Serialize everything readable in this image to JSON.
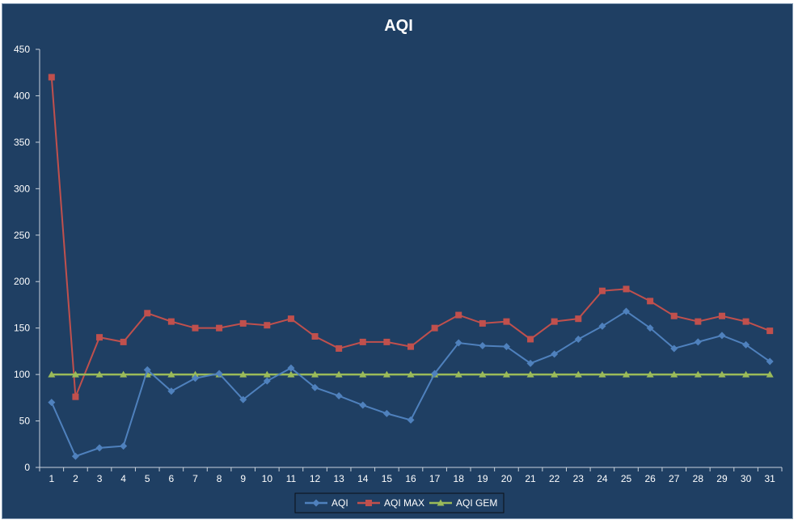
{
  "chart_data": {
    "type": "line",
    "title": "AQI",
    "xlabel": "",
    "ylabel": "",
    "ylim": [
      0,
      450
    ],
    "yticks": [
      "0",
      "50",
      "100",
      "150",
      "200",
      "250",
      "300",
      "350",
      "400",
      "450"
    ],
    "categories": [
      "1",
      "2",
      "3",
      "4",
      "5",
      "6",
      "7",
      "8",
      "9",
      "10",
      "11",
      "12",
      "13",
      "14",
      "15",
      "16",
      "17",
      "18",
      "19",
      "20",
      "21",
      "22",
      "23",
      "24",
      "25",
      "26",
      "27",
      "28",
      "29",
      "30",
      "31"
    ],
    "grid": false,
    "legend_position": "bottom",
    "series": [
      {
        "name": "AQI",
        "color": "#4f81bd",
        "marker": "diamond",
        "values": [
          70,
          12,
          21,
          23,
          105,
          82,
          96,
          101,
          73,
          93,
          107,
          86,
          77,
          67,
          58,
          51,
          101,
          134,
          131,
          130,
          112,
          122,
          138,
          152,
          168,
          150,
          128,
          135,
          142,
          132,
          114
        ]
      },
      {
        "name": "AQI MAX",
        "color": "#c0504d",
        "marker": "square",
        "values": [
          420,
          76,
          140,
          135,
          166,
          157,
          150,
          150,
          155,
          153,
          160,
          141,
          128,
          135,
          135,
          130,
          150,
          164,
          155,
          157,
          138,
          157,
          160,
          190,
          192,
          179,
          163,
          157,
          163,
          157,
          147
        ]
      },
      {
        "name": "AQI GEM",
        "color": "#9bbb59",
        "marker": "triangle",
        "values": [
          100,
          100,
          100,
          100,
          100,
          100,
          100,
          100,
          100,
          100,
          100,
          100,
          100,
          100,
          100,
          100,
          100,
          100,
          100,
          100,
          100,
          100,
          100,
          100,
          100,
          100,
          100,
          100,
          100,
          100,
          100
        ]
      }
    ]
  }
}
